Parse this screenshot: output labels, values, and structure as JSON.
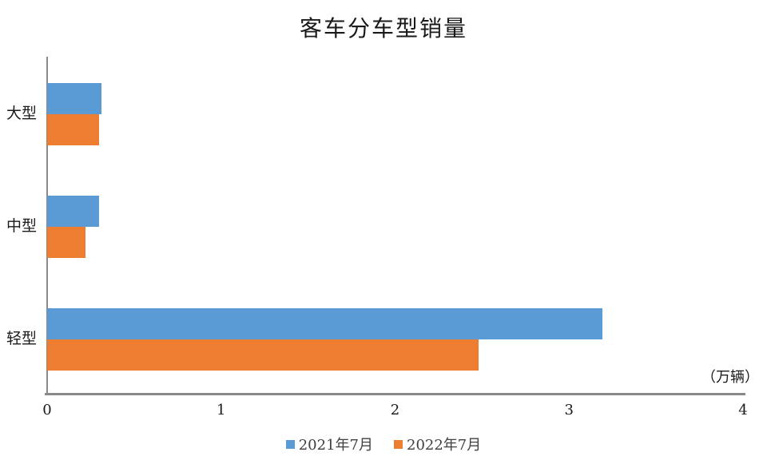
{
  "title": "客车分车型销量",
  "unit_label": "（万辆）",
  "chart_data": {
    "type": "bar",
    "orientation": "horizontal",
    "title": "客车分车型销量",
    "categories": [
      "大型",
      "中型",
      "轻型"
    ],
    "series": [
      {
        "name": "2021年7月",
        "color": "#5B9BD5",
        "values": [
          0.31,
          0.3,
          3.19
        ]
      },
      {
        "name": "2022年7月",
        "color": "#ED7D31",
        "values": [
          0.3,
          0.22,
          2.48
        ]
      }
    ],
    "xlabel": "（万辆）",
    "ylabel": "",
    "xlim": [
      0,
      4
    ],
    "xticks": [
      "0",
      "1",
      "2",
      "3",
      "4"
    ],
    "grid": false,
    "legend_position": "bottom",
    "axis_color": "#898989",
    "background": "#ffffff"
  }
}
